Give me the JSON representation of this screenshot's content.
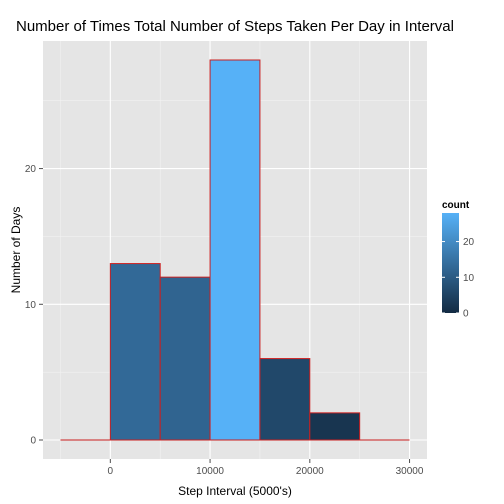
{
  "chart_data": {
    "type": "bar",
    "title": "Number of Times Total Number of Steps Taken Per Day in Interval",
    "xlabel": "Step Interval (5000's)",
    "ylabel": "Number of Days",
    "xlim": [
      -5000,
      30000
    ],
    "ylim": [
      0,
      28
    ],
    "x_ticks": [
      0,
      10000,
      20000,
      30000
    ],
    "x_tick_labels": [
      "0",
      "10000",
      "20000",
      "30000"
    ],
    "y_ticks": [
      0,
      10,
      20
    ],
    "y_tick_labels": [
      "0",
      "10",
      "20"
    ],
    "bins": [
      {
        "x0": -5000,
        "x1": 0,
        "count": 0
      },
      {
        "x0": 0,
        "x1": 5000,
        "count": 13
      },
      {
        "x0": 5000,
        "x1": 10000,
        "count": 12
      },
      {
        "x0": 10000,
        "x1": 15000,
        "count": 28
      },
      {
        "x0": 15000,
        "x1": 20000,
        "count": 6
      },
      {
        "x0": 20000,
        "x1": 25000,
        "count": 2
      },
      {
        "x0": 25000,
        "x1": 30000,
        "count": 0
      }
    ],
    "grid": true,
    "bar_outline_color": "#cc1f1f",
    "panel_background": "#e5e5e5",
    "legend": {
      "title": "count",
      "placement": "right",
      "ticks": [
        0,
        10,
        20
      ],
      "tick_labels": [
        "0",
        "10",
        "20"
      ],
      "range": [
        0,
        28
      ],
      "color_low": "#132b43",
      "color_high": "#56b1f7"
    }
  }
}
